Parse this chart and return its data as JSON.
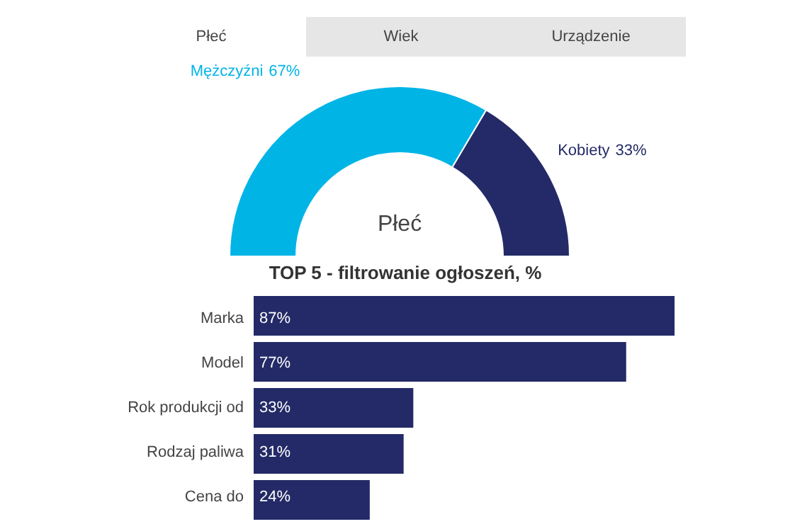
{
  "chart_data": [
    {
      "type": "donut",
      "title": "Płeć",
      "annotations": [
        "Płeć",
        "Wiek",
        "Urządzenie"
      ],
      "categories": [
        "Mężczyźni",
        "Kobiety"
      ],
      "values": [
        67,
        33
      ],
      "colors": [
        "#00b4e6",
        "#232a67"
      ],
      "value_labels": [
        "67%",
        "33%"
      ]
    },
    {
      "type": "bar",
      "orientation": "horizontal",
      "title": "TOP 5 - filtrowanie ogłoszeń, %",
      "categories": [
        "Marka",
        "Model",
        "Rok produkcji od",
        "Rodzaj paliwa",
        "Cena do"
      ],
      "values": [
        87,
        77,
        33,
        31,
        24
      ],
      "color": "#232a67",
      "value_labels": [
        "87%",
        "77%",
        "33%",
        "31%",
        "24%"
      ]
    }
  ]
}
